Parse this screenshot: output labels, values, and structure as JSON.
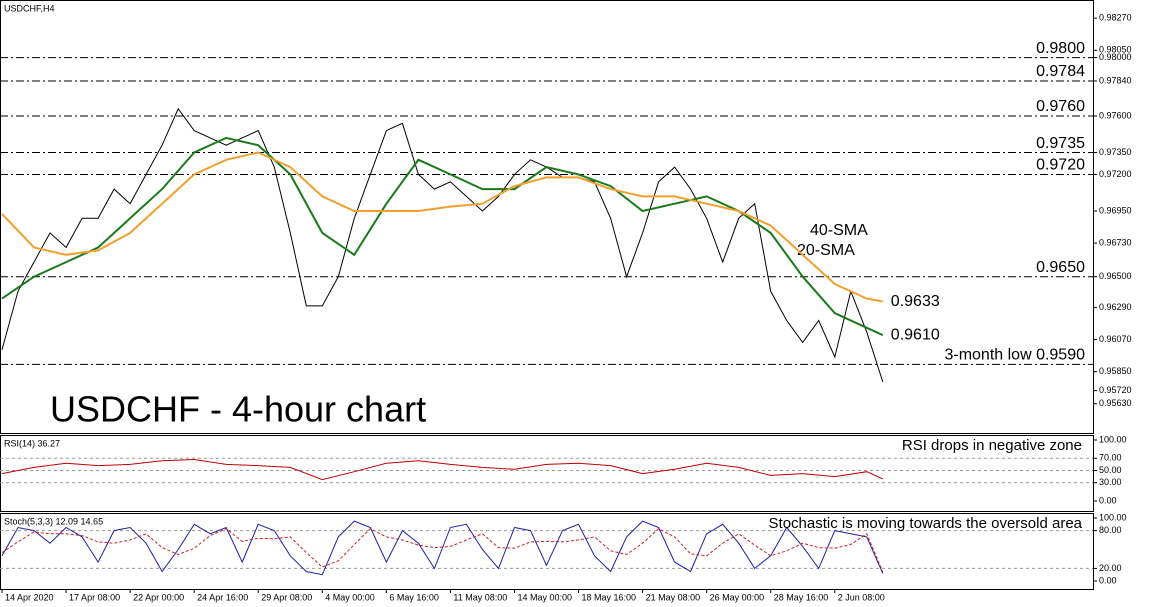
{
  "chart_data": [
    {
      "type": "line",
      "title": "USDCHF,H4",
      "heading": "USDCHF - 4-hour chart",
      "xlim": [
        -0.5,
        272.5
      ],
      "ylim": [
        0.9543,
        0.9836
      ],
      "yticks": [
        {
          "value": 0.9827,
          "label": "0.98270"
        },
        {
          "value": 0.9805,
          "label": "0.98050"
        },
        {
          "value": 0.98,
          "label": "0.98000"
        },
        {
          "value": 0.9784,
          "label": "0.97840"
        },
        {
          "value": 0.976,
          "label": "0.97600"
        },
        {
          "value": 0.9735,
          "label": "0.97350"
        },
        {
          "value": 0.972,
          "label": "0.97200"
        },
        {
          "value": 0.9695,
          "label": "0.96950"
        },
        {
          "value": 0.9673,
          "label": "0.96730"
        },
        {
          "value": 0.965,
          "label": "0.96500"
        },
        {
          "value": 0.9629,
          "label": "0.96290"
        },
        {
          "value": 0.9607,
          "label": "0.96070"
        },
        {
          "value": 0.9585,
          "label": "0.95850"
        },
        {
          "value": 0.9572,
          "label": "0.95720"
        },
        {
          "value": 0.9563,
          "label": "0.95630"
        }
      ],
      "levels": [
        {
          "value": 0.98,
          "label": "0.9800"
        },
        {
          "value": 0.9784,
          "label": "0.9784"
        },
        {
          "value": 0.976,
          "label": "0.9760"
        },
        {
          "value": 0.9735,
          "label": "0.9735"
        },
        {
          "value": 0.972,
          "label": "0.9720"
        },
        {
          "value": 0.965,
          "label": "0.9650"
        },
        {
          "value": 0.959,
          "label": "3-month low 0.9590"
        }
      ],
      "series": [
        {
          "color": "#000000",
          "x": [
            0,
            4,
            8,
            12,
            16,
            20,
            24,
            28,
            32,
            36,
            40,
            44,
            48,
            52,
            56,
            60,
            64,
            68,
            72,
            76,
            80,
            84,
            88,
            92,
            96,
            100,
            104,
            108,
            112,
            116,
            120,
            124,
            128,
            132,
            136,
            140,
            144,
            148,
            152,
            156,
            160,
            164,
            168,
            172,
            176,
            180,
            184,
            188,
            192,
            196,
            200,
            204,
            208,
            212,
            216,
            220
          ],
          "values": [
            0.96,
            0.964,
            0.966,
            0.968,
            0.967,
            0.969,
            0.969,
            0.971,
            0.97,
            0.972,
            0.974,
            0.9765,
            0.975,
            0.9745,
            0.974,
            0.9745,
            0.975,
            0.9725,
            0.968,
            0.963,
            0.963,
            0.965,
            0.969,
            0.972,
            0.975,
            0.9755,
            0.972,
            0.971,
            0.9715,
            0.9705,
            0.9695,
            0.9705,
            0.972,
            0.973,
            0.9725,
            0.9718,
            0.9718,
            0.9715,
            0.969,
            0.965,
            0.968,
            0.9715,
            0.9725,
            0.971,
            0.969,
            0.966,
            0.969,
            0.97,
            0.964,
            0.962,
            0.9605,
            0.962,
            0.9595,
            0.964,
            0.9612,
            0.9578
          ]
        },
        {
          "name": "20-SMA",
          "end_label": "0.9610",
          "color": "#1a7a1a",
          "x": [
            0,
            8,
            16,
            24,
            32,
            40,
            48,
            56,
            64,
            72,
            80,
            88,
            96,
            104,
            112,
            120,
            128,
            136,
            144,
            152,
            160,
            168,
            176,
            184,
            192,
            200,
            208,
            216,
            220
          ],
          "values": [
            0.9635,
            0.965,
            0.966,
            0.967,
            0.969,
            0.971,
            0.9735,
            0.9745,
            0.974,
            0.972,
            0.968,
            0.9665,
            0.97,
            0.973,
            0.972,
            0.971,
            0.971,
            0.9725,
            0.972,
            0.9712,
            0.9695,
            0.97,
            0.9705,
            0.9695,
            0.968,
            0.965,
            0.9625,
            0.9615,
            0.961
          ]
        },
        {
          "name": "40-SMA",
          "end_label": "0.9633",
          "color": "#f0a030",
          "x": [
            0,
            8,
            16,
            24,
            32,
            40,
            48,
            56,
            64,
            72,
            80,
            88,
            96,
            104,
            112,
            120,
            128,
            136,
            144,
            152,
            160,
            168,
            176,
            184,
            192,
            200,
            208,
            216,
            220
          ],
          "values": [
            0.9693,
            0.967,
            0.9665,
            0.9668,
            0.968,
            0.97,
            0.972,
            0.973,
            0.9735,
            0.9725,
            0.9705,
            0.9695,
            0.9695,
            0.9695,
            0.9698,
            0.97,
            0.9712,
            0.9718,
            0.9718,
            0.971,
            0.9705,
            0.9705,
            0.97,
            0.9695,
            0.9685,
            0.9665,
            0.9645,
            0.9635,
            0.9633
          ]
        }
      ]
    },
    {
      "type": "line",
      "title": "RSI(14) 36.27",
      "annotation": "RSI drops in negative zone",
      "xlim": [
        -0.5,
        272.5
      ],
      "ylim": [
        0,
        100
      ],
      "yticks": [
        {
          "value": 100,
          "label": "100.00"
        },
        {
          "value": 70,
          "label": "70.00"
        },
        {
          "value": 50,
          "label": "50.00"
        },
        {
          "value": 30,
          "label": "30.00"
        },
        {
          "value": 0,
          "label": "0.00"
        }
      ],
      "series": [
        {
          "color": "#c00000",
          "x": [
            0,
            8,
            16,
            24,
            32,
            40,
            48,
            56,
            64,
            72,
            80,
            88,
            96,
            104,
            112,
            120,
            128,
            136,
            144,
            152,
            160,
            168,
            176,
            184,
            192,
            200,
            208,
            216,
            220
          ],
          "values": [
            45,
            55,
            62,
            58,
            60,
            66,
            68,
            60,
            58,
            55,
            35,
            48,
            62,
            66,
            60,
            55,
            52,
            60,
            62,
            58,
            45,
            52,
            62,
            55,
            42,
            45,
            40,
            48,
            36.27
          ]
        }
      ]
    },
    {
      "type": "line",
      "title": "Stoch(5,3,3) 12.09 14.65",
      "annotation": "Stochastic is moving towards the oversold area",
      "xlim": [
        -0.5,
        272.5
      ],
      "ylim": [
        0,
        100
      ],
      "yticks": [
        {
          "value": 100,
          "label": "100.00"
        },
        {
          "value": 80,
          "label": "80.00"
        },
        {
          "value": 20,
          "label": "20.00"
        },
        {
          "value": 0,
          "label": "0.00"
        }
      ],
      "xticks": [
        {
          "value": 0,
          "label": "14 Apr 2020"
        },
        {
          "value": 16,
          "label": "17 Apr 08:00"
        },
        {
          "value": 32,
          "label": "22 Apr 00:00"
        },
        {
          "value": 48,
          "label": "24 Apr 16:00"
        },
        {
          "value": 64,
          "label": "29 Apr 08:00"
        },
        {
          "value": 80,
          "label": "4 May 00:00"
        },
        {
          "value": 96,
          "label": "6 May 16:00"
        },
        {
          "value": 112,
          "label": "11 May 08:00"
        },
        {
          "value": 128,
          "label": "14 May 00:00"
        },
        {
          "value": 144,
          "label": "18 May 16:00"
        },
        {
          "value": 160,
          "label": "21 May 08:00"
        },
        {
          "value": 176,
          "label": "26 May 00:00"
        },
        {
          "value": 192,
          "label": "28 May 16:00"
        },
        {
          "value": 208,
          "label": "2 Jun 08:00"
        }
      ],
      "series": [
        {
          "color": "#1f1fa8",
          "x": [
            0,
            4,
            8,
            12,
            16,
            20,
            24,
            28,
            32,
            36,
            40,
            44,
            48,
            52,
            56,
            60,
            64,
            68,
            72,
            76,
            80,
            84,
            88,
            92,
            96,
            100,
            104,
            108,
            112,
            116,
            120,
            124,
            128,
            132,
            136,
            140,
            144,
            148,
            152,
            156,
            160,
            164,
            168,
            172,
            176,
            180,
            184,
            188,
            192,
            196,
            200,
            204,
            208,
            212,
            216,
            220
          ],
          "values": [
            40,
            85,
            80,
            60,
            85,
            70,
            30,
            80,
            85,
            60,
            15,
            50,
            90,
            75,
            85,
            30,
            90,
            80,
            40,
            15,
            10,
            70,
            95,
            85,
            30,
            80,
            60,
            20,
            85,
            90,
            50,
            20,
            85,
            80,
            25,
            80,
            90,
            40,
            15,
            70,
            95,
            85,
            30,
            15,
            75,
            90,
            60,
            20,
            40,
            85,
            55,
            20,
            80,
            75,
            70,
            12.09
          ]
        },
        {
          "color": "#d02020",
          "dashed": true,
          "x": [
            0,
            4,
            8,
            12,
            16,
            20,
            24,
            28,
            32,
            36,
            40,
            44,
            48,
            52,
            56,
            60,
            64,
            68,
            72,
            76,
            80,
            84,
            88,
            92,
            96,
            100,
            104,
            108,
            112,
            116,
            120,
            124,
            128,
            132,
            136,
            140,
            144,
            148,
            152,
            156,
            160,
            164,
            168,
            172,
            176,
            180,
            184,
            188,
            192,
            196,
            200,
            204,
            208,
            212,
            216,
            220
          ],
          "values": [
            45,
            62,
            78,
            75,
            75,
            72,
            62,
            60,
            65,
            75,
            53,
            42,
            52,
            72,
            83,
            63,
            68,
            67,
            70,
            45,
            22,
            32,
            58,
            83,
            70,
            65,
            57,
            53,
            55,
            65,
            75,
            53,
            52,
            62,
            63,
            62,
            65,
            70,
            48,
            42,
            60,
            83,
            70,
            43,
            40,
            60,
            75,
            57,
            40,
            48,
            60,
            53,
            52,
            58,
            75,
            14.65
          ]
        }
      ]
    }
  ]
}
